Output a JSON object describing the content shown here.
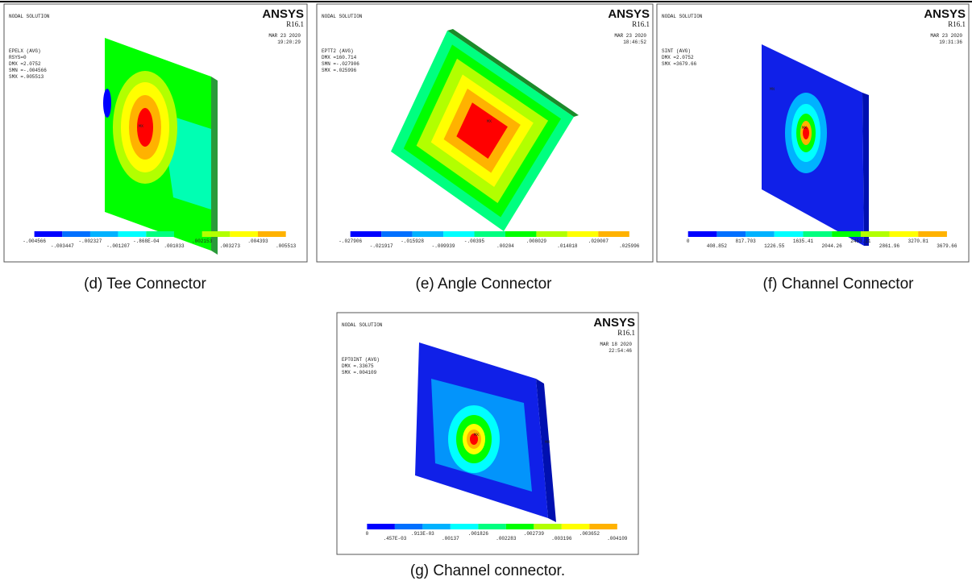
{
  "legend_colors": [
    "#0000ff",
    "#0070ff",
    "#00b2ff",
    "#00ffff",
    "#00ff80",
    "#00ff00",
    "#b2ff00",
    "#ffff00",
    "#ffb200",
    "#ff0000"
  ],
  "panels": [
    {
      "caption": "(d) Tee Connector",
      "title": "NODAL SOLUTION",
      "brand": "ANSYS",
      "version": "R16.1",
      "date": "MAR 23 2020",
      "time": "19:20:29",
      "info": [
        "EPELX    (AVG)",
        "RSYS=0",
        "DMX =2.0752",
        "SMN =-.004566",
        "SMX =.005513"
      ],
      "legend": [
        "-.004566",
        "-.003447",
        "-.002327",
        "-.001207",
        "-.868E-04",
        ".001033",
        ".002153",
        ".003273",
        ".004393",
        ".005513"
      ],
      "markers": [
        "MX"
      ]
    },
    {
      "caption": "(e) Angle Connector",
      "title": "NODAL SOLUTION",
      "brand": "ANSYS",
      "version": "R16.1",
      "date": "MAR 23 2020",
      "time": "18:46:52",
      "info": [
        "EPTT2    (AVG)",
        "DMX =160.714",
        "SMN =-.027906",
        "SMX =.025996"
      ],
      "legend": [
        "-.027906",
        "-.021917",
        "-.015928",
        "-.009939",
        "-.00395",
        ".00204",
        ".008029",
        ".014018",
        ".020007",
        ".025996"
      ],
      "markers": [
        "MX"
      ]
    },
    {
      "caption": "(f) Channel Connector",
      "title": "NODAL SOLUTION",
      "brand": "ANSYS",
      "version": "R16.1",
      "date": "MAR 23 2020",
      "time": "19:31:36",
      "info": [
        "SINT     (AVG)",
        "DMX =2.0752",
        "SMX =3679.66"
      ],
      "legend": [
        "0",
        "408.852",
        "817.703",
        "1226.55",
        "1635.41",
        "2044.26",
        "2453.11",
        "2861.96",
        "3270.81",
        "3679.66"
      ],
      "markers": [
        "MN",
        "MX"
      ]
    },
    {
      "caption": "(g) Channel connector.",
      "title": "NODAL SOLUTION",
      "brand": "ANSYS",
      "version": "R16.1",
      "date": "MAR 18 2020",
      "time": "22:54:46",
      "info": [
        "EPTOINT  (AVG)",
        "DMX =.33675",
        "SMX =.004109"
      ],
      "legend": [
        "0",
        ".457E-03",
        ".913E-03",
        ".00137",
        ".001826",
        ".002283",
        ".002739",
        ".003196",
        ".003652",
        ".004109"
      ],
      "markers": [
        "MN",
        "MX"
      ]
    }
  ]
}
